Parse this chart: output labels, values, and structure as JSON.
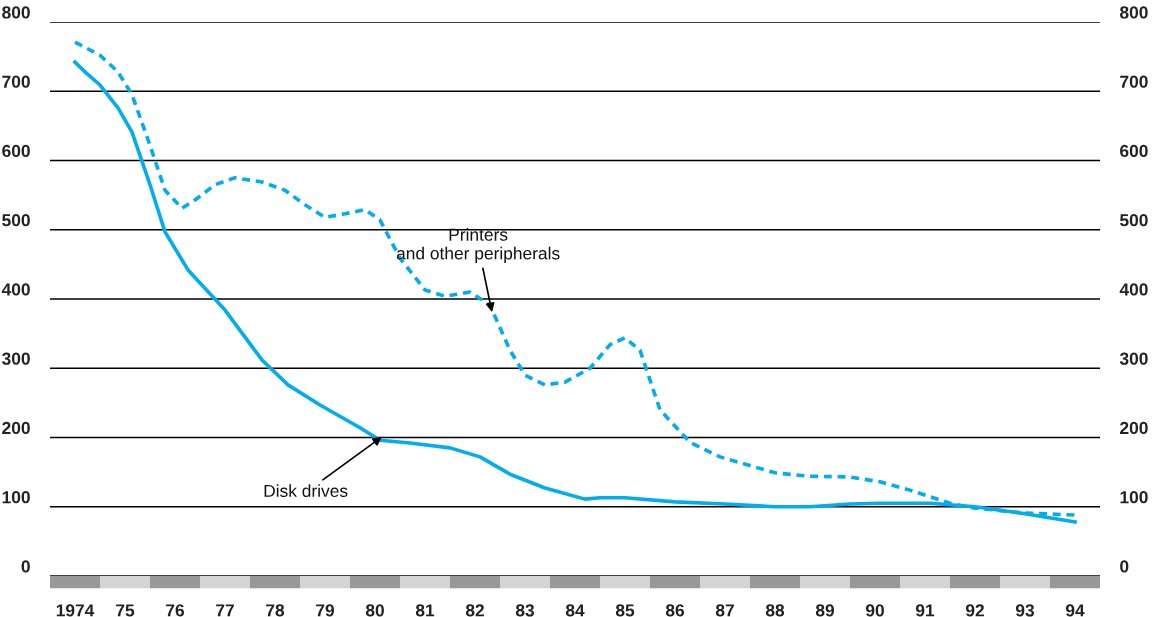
{
  "chart_data": {
    "type": "line",
    "xlim": [
      1973.5,
      1994.5
    ],
    "xticks": [
      {
        "value": 1974,
        "label": "1974"
      },
      {
        "value": 1975,
        "label": "75"
      },
      {
        "value": 1976,
        "label": "76"
      },
      {
        "value": 1977,
        "label": "77"
      },
      {
        "value": 1978,
        "label": "78"
      },
      {
        "value": 1979,
        "label": "79"
      },
      {
        "value": 1980,
        "label": "80"
      },
      {
        "value": 1981,
        "label": "81"
      },
      {
        "value": 1982,
        "label": "82"
      },
      {
        "value": 1983,
        "label": "83"
      },
      {
        "value": 1984,
        "label": "84"
      },
      {
        "value": 1985,
        "label": "85"
      },
      {
        "value": 1986,
        "label": "86"
      },
      {
        "value": 1987,
        "label": "87"
      },
      {
        "value": 1988,
        "label": "88"
      },
      {
        "value": 1989,
        "label": "89"
      },
      {
        "value": 1990,
        "label": "90"
      },
      {
        "value": 1991,
        "label": "91"
      },
      {
        "value": 1992,
        "label": "92"
      },
      {
        "value": 1993,
        "label": "93"
      },
      {
        "value": 1994,
        "label": "94"
      }
    ],
    "ylim": [
      0,
      800
    ],
    "yticks": [
      0,
      100,
      200,
      300,
      400,
      500,
      600,
      700,
      800
    ],
    "y2lim": [
      0,
      800
    ],
    "y2ticks": [
      0,
      100,
      200,
      300,
      400,
      500,
      600,
      700,
      800
    ],
    "grid": "y",
    "marker": "none",
    "series": [
      {
        "color": "#00aeef",
        "line_style": "solid",
        "x": [
          1974,
          1974.2,
          1974.5,
          1974.86,
          1975.14,
          1975.5,
          1975.8,
          1976.26,
          1977,
          1977.74,
          1978.26,
          1978.9,
          1979.7,
          1980.1,
          1980.7,
          1981.5,
          1982.1,
          1982.7,
          1983.4,
          1984.2,
          1984.5,
          1985,
          1986,
          1987,
          1988,
          1988.7,
          1989.5,
          1990.1,
          1991.1,
          1992,
          1993,
          1994
        ],
        "values": [
          742,
          728,
          709,
          676,
          641,
          565,
          497,
          442,
          384,
          312,
          276,
          247,
          214,
          196,
          192,
          185,
          172,
          147,
          127,
          111,
          113,
          113,
          107,
          104,
          100,
          100,
          104,
          105,
          105,
          100,
          90,
          78
        ]
      },
      {
        "color": "#00aeef",
        "line_style": "dashed",
        "x": [
          1974,
          1974.5,
          1974.86,
          1975.14,
          1975.5,
          1975.8,
          1976.14,
          1976.4,
          1976.8,
          1977.2,
          1977.74,
          1978.2,
          1978.6,
          1979,
          1979.4,
          1979.8,
          1980.1,
          1980.5,
          1981,
          1981.4,
          1981.9,
          1982.3,
          1982.7,
          1983,
          1983.4,
          1983.8,
          1984.3,
          1984.7,
          1985,
          1985.3,
          1985.7,
          1986.3,
          1986.9,
          1988,
          1988.7,
          1989.5,
          1990.1,
          1990.7,
          1991.5,
          1992,
          1993,
          1994
        ],
        "values": [
          771,
          752,
          728,
          695,
          622,
          557,
          531,
          543,
          565,
          575,
          569,
          557,
          536,
          518,
          523,
          529,
          514,
          459,
          413,
          404,
          410,
          391,
          326,
          290,
          276,
          280,
          300,
          334,
          344,
          326,
          240,
          193,
          172,
          149,
          144,
          143,
          136,
          124,
          105,
          98,
          91,
          88
        ]
      }
    ],
    "annotations": [
      {
        "text": "Printers\nand other peripherals",
        "x": 1982.34,
        "y": 381
      },
      {
        "text": "Disk drives",
        "x": 1980.14,
        "y": 201
      }
    ]
  }
}
